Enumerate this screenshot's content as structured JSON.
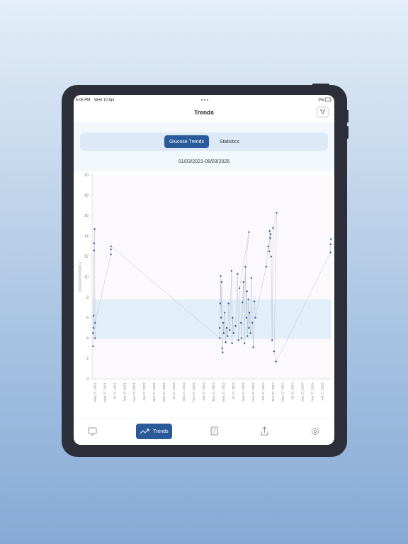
{
  "status_bar": {
    "time": "5:05 PM",
    "date": "Wed 10 Apr",
    "battery": "2%"
  },
  "header": {
    "title": "Trends"
  },
  "tabs": [
    "Glucose Trends",
    "Statistics"
  ],
  "date_range": "01/03/2021-08/03/2025",
  "nav": {
    "active_label": "Trends"
  },
  "chart_data": {
    "type": "line",
    "y_label": "Glucose(mmol/L)",
    "color": "#2b5a9a",
    "line_color": "#b9bfcc",
    "target_range": [
      3.9,
      7.8
    ],
    "target_color": "#e2eef8",
    "ylim": [
      0,
      20
    ],
    "yticks": [
      0,
      2,
      4,
      6,
      8,
      10,
      12,
      14,
      16,
      18,
      20
    ],
    "xlim": [
      -0.3,
      23.9
    ],
    "xticks": [
      {
        "value": 0,
        "label": "May 27, 2021"
      },
      {
        "value": 1,
        "label": "May 27, 2021"
      },
      {
        "value": 2,
        "label": "Jul 27, 2021"
      },
      {
        "value": 3,
        "label": "Sep 27, 2021"
      },
      {
        "value": 4,
        "label": "Nov 27, 2021"
      },
      {
        "value": 5,
        "label": "Jan 27, 2022"
      },
      {
        "value": 6,
        "label": "Mar 27, 2022"
      },
      {
        "value": 7,
        "label": "May 27, 2022"
      },
      {
        "value": 8,
        "label": "Jul 27, 2022"
      },
      {
        "value": 9,
        "label": "Sep 27, 2022"
      },
      {
        "value": 10,
        "label": "Nov 27, 2022"
      },
      {
        "value": 11,
        "label": "Jan 27, 2023"
      },
      {
        "value": 12,
        "label": "Mar 27, 2023"
      },
      {
        "value": 13,
        "label": "May 27, 2023"
      },
      {
        "value": 14,
        "label": "Jul 27, 2023"
      },
      {
        "value": 15,
        "label": "Sep 27, 2023"
      },
      {
        "value": 16,
        "label": "Nov 27, 2023"
      },
      {
        "value": 17,
        "label": "Jan 27, 2024"
      },
      {
        "value": 18,
        "label": "Mar 27, 2024"
      },
      {
        "value": 19,
        "label": "May 27, 2024"
      },
      {
        "value": 20,
        "label": "Jul 27, 2024"
      },
      {
        "value": 21,
        "label": "Sep 27, 2024"
      },
      {
        "value": 22,
        "label": "Nov 27, 2024"
      },
      {
        "value": 23,
        "label": "Jan 27, 2025"
      }
    ],
    "x": [
      -0.2,
      -0.2,
      -0.15,
      -0.15,
      -0.1,
      -0.1,
      -0.05,
      0.0,
      0.0,
      1.6,
      1.6,
      1.62,
      12.6,
      12.6,
      12.65,
      12.7,
      12.75,
      12.8,
      12.85,
      12.9,
      12.95,
      13.0,
      13.1,
      13.2,
      13.3,
      13.4,
      13.5,
      13.6,
      13.8,
      13.85,
      13.9,
      14.0,
      14.2,
      14.4,
      14.5,
      14.6,
      15.55,
      14.75,
      14.8,
      14.9,
      15.0,
      15.1,
      15.2,
      15.3,
      15.35,
      15.4,
      15.5,
      15.55,
      15.6,
      15.7,
      15.8,
      15.9,
      16.0,
      16.1,
      16.2,
      17.3,
      17.5,
      17.6,
      17.65,
      17.7,
      17.75,
      17.8,
      17.9,
      18.0,
      18.36,
      18.1,
      18.3,
      23.8,
      23.8,
      23.85
    ],
    "values": [
      3.2,
      4.5,
      6.2,
      5.0,
      12.6,
      13.3,
      14.7,
      4.0,
      5.5,
      12.2,
      12.7,
      13.0,
      4.0,
      5.0,
      7.4,
      10.1,
      6.0,
      9.5,
      3.0,
      2.6,
      5.5,
      4.5,
      6.5,
      3.6,
      5.0,
      4.2,
      7.4,
      4.8,
      10.6,
      3.5,
      6.0,
      4.5,
      5.2,
      10.3,
      3.8,
      8.9,
      14.4,
      5.5,
      4.0,
      7.5,
      9.5,
      3.5,
      11.0,
      6.0,
      8.6,
      4.2,
      7.8,
      5.0,
      6.5,
      4.5,
      9.9,
      5.5,
      3.1,
      7.6,
      6.0,
      11.0,
      13.0,
      12.5,
      14.5,
      13.8,
      14.2,
      12.0,
      3.8,
      14.8,
      16.3,
      2.7,
      1.7,
      12.4,
      13.2,
      13.7
    ]
  }
}
